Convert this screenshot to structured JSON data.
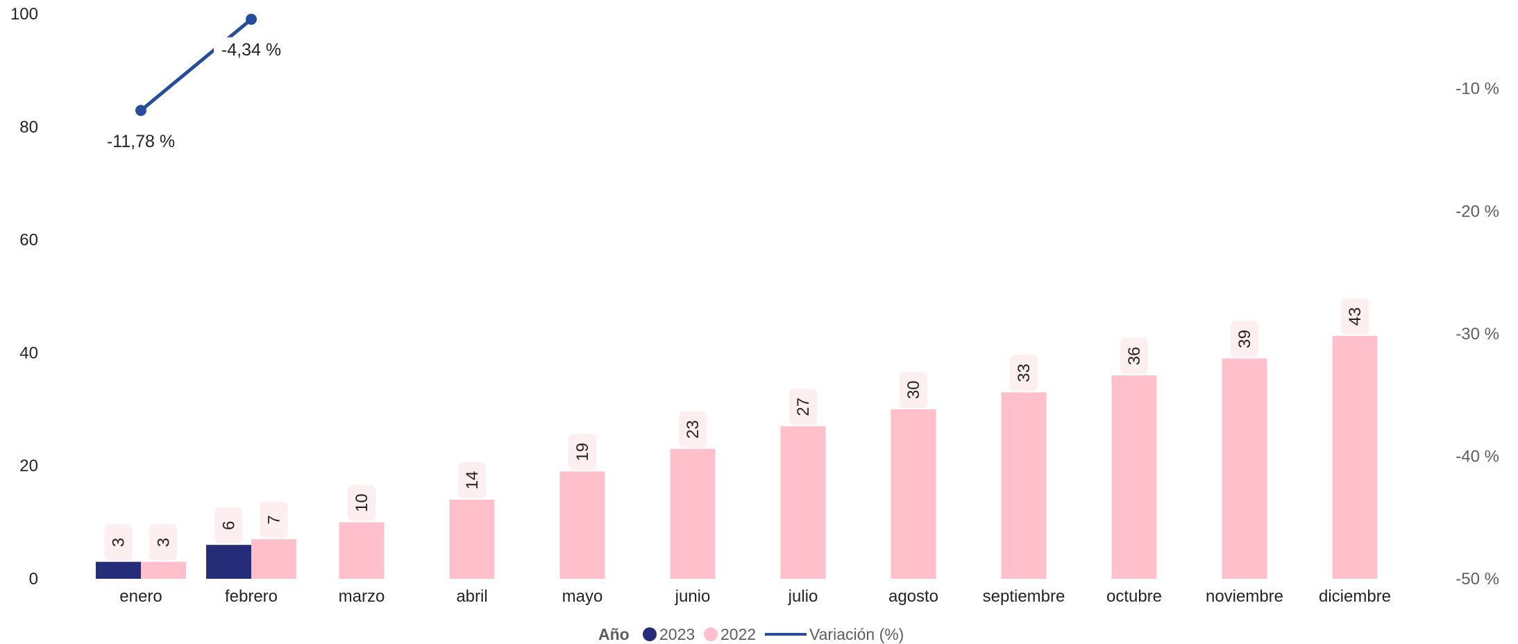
{
  "chart_data": {
    "type": "bar",
    "categories": [
      "enero",
      "febrero",
      "marzo",
      "abril",
      "mayo",
      "junio",
      "julio",
      "agosto",
      "septiembre",
      "octubre",
      "noviembre",
      "diciembre"
    ],
    "series": [
      {
        "name": "2023",
        "type": "bar",
        "axis": "left",
        "color": "#252c78",
        "values": [
          3,
          6,
          null,
          null,
          null,
          null,
          null,
          null,
          null,
          null,
          null,
          null
        ],
        "data_labels": [
          "3",
          "6",
          null,
          null,
          null,
          null,
          null,
          null,
          null,
          null,
          null,
          null
        ]
      },
      {
        "name": "2022",
        "type": "bar",
        "axis": "right",
        "color": "#ffc0cb",
        "values": [
          3,
          7,
          10,
          14,
          19,
          23,
          27,
          30,
          33,
          36,
          39,
          43
        ],
        "data_labels": [
          "3",
          "7",
          "10",
          "14",
          "19",
          "23",
          "27",
          "30",
          "33",
          "36",
          "39",
          "43"
        ]
      },
      {
        "name": "Variación (%)",
        "type": "line",
        "axis": "right",
        "color": "#264d9b",
        "values": [
          -11.78,
          -4.34,
          null,
          null,
          null,
          null,
          null,
          null,
          null,
          null,
          null,
          null
        ],
        "data_labels": [
          "-11,78 %",
          "-4,34 %",
          null,
          null,
          null,
          null,
          null,
          null,
          null,
          null,
          null,
          null
        ]
      }
    ],
    "y_left": {
      "ylim": [
        0,
        100
      ],
      "ticks": [
        0,
        20,
        40,
        60,
        80,
        100
      ],
      "tick_labels": [
        "0",
        "20",
        "40",
        "60",
        "80",
        "100"
      ]
    },
    "y_right": {
      "ylim": [
        -50,
        -3.9
      ],
      "ticks": [
        -50,
        -40,
        -30,
        -20,
        -10
      ],
      "tick_labels": [
        "-50 %",
        "-40 %",
        "-30 %",
        "-20 %",
        "-10 %"
      ]
    },
    "grid": false,
    "legend": {
      "title": "Año",
      "position": "bottom-center",
      "entries": [
        {
          "label": "2023",
          "marker": "circle",
          "color": "#252c78"
        },
        {
          "label": "2022",
          "marker": "circle",
          "color": "#ffc0cb"
        },
        {
          "label": "Variación (%)",
          "marker": "line",
          "color": "#264d9b"
        }
      ]
    },
    "label_background_color": "#fdeef0"
  }
}
